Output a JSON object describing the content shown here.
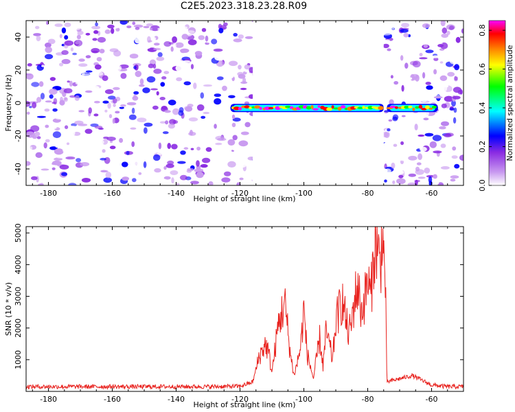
{
  "title": "C2E5.2023.318.23.28.R09",
  "colors": {
    "snr_line": "#e8201c",
    "gap_fill": "#ffffff",
    "colormap": [
      "#ffffff",
      "#c99af0",
      "#8a2be2",
      "#0000ff",
      "#00ffff",
      "#00ff00",
      "#ffff00",
      "#ff8000",
      "#ff0000",
      "#ff00ff"
    ]
  },
  "chart_data": [
    {
      "type": "heatmap",
      "title": "",
      "xlabel": "Height of straight line (km)",
      "ylabel": "Frequency (Hz)",
      "xlim": [
        -187,
        -50
      ],
      "ylim": [
        -50,
        50
      ],
      "xticks": [
        -180,
        -160,
        -140,
        -120,
        -100,
        -80,
        -60
      ],
      "yticks": [
        -40,
        -20,
        0,
        20,
        40
      ],
      "colorbar": {
        "label": "Normalized spectral amplitude",
        "range": [
          0.0,
          0.85
        ],
        "ticks": [
          0.0,
          0.2,
          0.4,
          0.6,
          0.8
        ]
      },
      "features": {
        "no_data_interval_km": [
          -116,
          -75
        ],
        "echo_trace_frequency_hz": -3,
        "echo_segments_km": [
          [
            -123,
            -75
          ],
          [
            -74,
            -58
          ]
        ],
        "echo_peak_amplitude": 0.85,
        "background_amplitude": [
          0.05,
          0.3
        ]
      }
    },
    {
      "type": "line",
      "title": "",
      "xlabel": "Height of straight line (km)",
      "ylabel": "SNR (10 * v/v)",
      "xlim": [
        -187,
        -50
      ],
      "ylim": [
        0,
        5200
      ],
      "xticks": [
        -180,
        -160,
        -140,
        -120,
        -100,
        -80,
        -60
      ],
      "yticks": [
        1000,
        2000,
        3000,
        4000,
        5000
      ],
      "grid": false,
      "series": [
        {
          "x": [
            -187,
            -170,
            -150,
            -130,
            -120,
            -116,
            -114,
            -112,
            -111,
            -110,
            -108,
            -106,
            -104,
            -103,
            -101,
            -100,
            -99,
            -97,
            -95,
            -94,
            -93,
            -91,
            -90,
            -88,
            -86,
            -85,
            -84,
            -83,
            -82,
            -81,
            -80,
            -79,
            -78,
            -77,
            -76,
            -75.5,
            -75,
            -74.5,
            -74,
            -72,
            -70,
            -68,
            -66,
            -64,
            -62,
            -60,
            -55,
            -50
          ],
          "y": [
            150,
            150,
            150,
            150,
            160,
            300,
            1100,
            1500,
            1200,
            600,
            2100,
            2800,
            1000,
            500,
            1400,
            2600,
            1200,
            400,
            1700,
            800,
            1900,
            1000,
            2200,
            2900,
            1800,
            2200,
            3000,
            3300,
            2500,
            2900,
            3500,
            3000,
            4500,
            4600,
            3800,
            5200,
            4200,
            3600,
            300,
            350,
            400,
            450,
            500,
            400,
            300,
            200,
            150,
            150
          ]
        }
      ]
    }
  ]
}
